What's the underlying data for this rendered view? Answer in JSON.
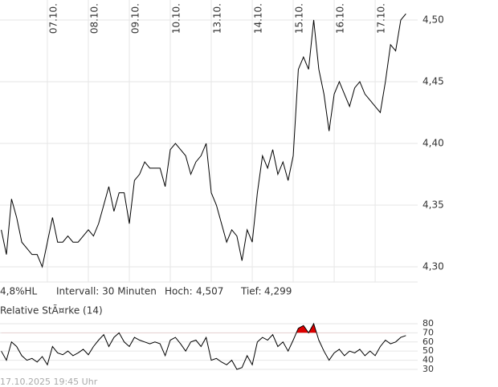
{
  "chart_data": [
    {
      "type": "line",
      "x": [
        -9,
        -8,
        -7,
        -6,
        -5,
        -4,
        -3,
        -2,
        -1,
        0,
        1,
        2,
        3,
        4,
        5,
        6,
        7,
        8,
        9,
        10,
        11,
        12,
        13,
        14,
        15,
        16,
        17,
        18,
        19,
        20,
        21,
        22,
        23,
        24,
        25,
        26,
        27,
        28,
        29,
        30,
        31,
        32,
        33,
        34,
        35,
        36,
        37,
        38,
        39,
        40,
        41,
        42,
        43,
        44,
        45,
        46,
        47,
        48,
        49,
        50,
        51,
        52,
        53,
        54,
        55,
        56,
        57,
        58,
        59,
        60,
        61,
        62,
        63,
        64,
        65,
        66,
        67,
        68,
        69,
        70
      ],
      "series": [
        {
          "color": "#000000",
          "values": [
            4.33,
            4.31,
            4.355,
            4.34,
            4.32,
            4.315,
            4.31,
            4.31,
            4.3,
            4.32,
            4.34,
            4.32,
            4.32,
            4.325,
            4.32,
            4.32,
            4.325,
            4.33,
            4.325,
            4.335,
            4.35,
            4.365,
            4.345,
            4.36,
            4.36,
            4.335,
            4.37,
            4.375,
            4.385,
            4.38,
            4.38,
            4.38,
            4.365,
            4.395,
            4.4,
            4.395,
            4.39,
            4.375,
            4.385,
            4.39,
            4.4,
            4.36,
            4.35,
            4.335,
            4.32,
            4.33,
            4.325,
            4.305,
            4.33,
            4.32,
            4.36,
            4.39,
            4.38,
            4.395,
            4.375,
            4.385,
            4.37,
            4.39,
            4.46,
            4.47,
            4.46,
            4.5,
            4.46,
            4.44,
            4.41,
            4.44,
            4.45,
            4.44,
            4.43,
            4.445,
            4.45,
            4.44,
            4.435,
            4.43,
            4.425,
            4.45,
            4.48,
            4.475,
            4.5,
            4.505
          ]
        }
      ],
      "xlim": [
        -9.25,
        72.3
      ],
      "xticks": [
        {
          "value": 0,
          "label": "07.10."
        },
        {
          "value": 8,
          "label": "08.10."
        },
        {
          "value": 16,
          "label": "09.10."
        },
        {
          "value": 24,
          "label": "10.10."
        },
        {
          "value": 32,
          "label": "13.10."
        },
        {
          "value": 40,
          "label": "14.10."
        },
        {
          "value": 48,
          "label": "15.10."
        },
        {
          "value": 56,
          "label": "16.10."
        },
        {
          "value": 64,
          "label": "17.10."
        }
      ],
      "ylim": [
        4.2877,
        4.5162
      ],
      "yticks": [
        {
          "value": 4.3,
          "label": "4,30"
        },
        {
          "value": 4.35,
          "label": "4,35"
        },
        {
          "value": 4.4,
          "label": "4,40"
        },
        {
          "value": 4.45,
          "label": "4,45"
        },
        {
          "value": 4.5,
          "label": "4,50"
        }
      ],
      "grid": true
    },
    {
      "type": "line",
      "title": "Relative StÃ¤rke (14)",
      "series": [
        {
          "color": "#000000",
          "values": [
            50,
            40,
            60,
            55,
            45,
            40,
            42,
            38,
            44,
            35,
            55,
            48,
            46,
            50,
            45,
            48,
            52,
            46,
            55,
            62,
            68,
            55,
            65,
            70,
            60,
            55,
            65,
            62,
            60,
            58,
            60,
            58,
            45,
            62,
            65,
            58,
            50,
            60,
            62,
            55,
            65,
            40,
            42,
            38,
            35,
            40,
            30,
            32,
            45,
            35,
            60,
            65,
            62,
            68,
            55,
            60,
            50,
            62,
            75,
            78,
            70,
            80,
            62,
            50,
            40,
            48,
            52,
            45,
            50,
            48,
            52,
            45,
            50,
            45,
            55,
            62,
            58,
            60,
            65,
            67
          ]
        }
      ],
      "highlight_above": 70,
      "highlight_color": "#dd0000",
      "ylim": [
        25.6,
        83.5
      ],
      "yticks": [
        30,
        40,
        50,
        60,
        70,
        80
      ],
      "grid": true
    }
  ],
  "info_bar": {
    "range": "4,8%HL",
    "interval": "Intervall: 30 Minuten",
    "high_label": "Hoch:",
    "high": "4,507",
    "low_label": "Tief:",
    "low": "4,299"
  },
  "footer": "17.10.2025 19:45 Uhr"
}
